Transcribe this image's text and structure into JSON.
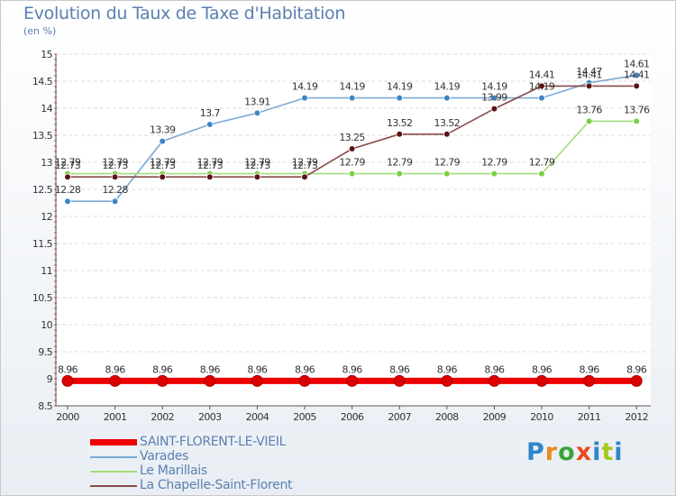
{
  "chart_data": {
    "type": "line",
    "title": "Evolution du Taux de Taxe d'Habitation",
    "subtitle": "(en %)",
    "categories": [
      "2000",
      "2001",
      "2002",
      "2003",
      "2004",
      "2005",
      "2006",
      "2007",
      "2008",
      "2009",
      "2010",
      "2011",
      "2012"
    ],
    "ylim": [
      8.5,
      15
    ],
    "yticks": [
      "8.5",
      "9",
      "9.5",
      "10",
      "10.5",
      "11",
      "11.5",
      "12",
      "12.5",
      "13",
      "13.5",
      "14",
      "14.5",
      "15"
    ],
    "legend_position": "bottom-left",
    "series": [
      {
        "name": "SAINT-FLORENT-LE-VIEIL",
        "color": "#ee0000",
        "marker": "#dd0000",
        "thick": true,
        "values": [
          8.96,
          8.96,
          8.96,
          8.96,
          8.96,
          8.96,
          8.96,
          8.96,
          8.96,
          8.96,
          8.96,
          8.96,
          8.96
        ],
        "labels": [
          "8.96",
          "8.96",
          "8.96",
          "8.96",
          "8.96",
          "8.96",
          "8.96",
          "8.96",
          "8.96",
          "8.96",
          "8.96",
          "8.96",
          "8.96"
        ]
      },
      {
        "name": "Varades",
        "color": "#7ba9d6",
        "marker": "#3d86c6",
        "thick": false,
        "values": [
          12.28,
          12.28,
          13.39,
          13.7,
          13.91,
          14.19,
          14.19,
          14.19,
          14.19,
          14.19,
          14.19,
          14.47,
          14.61
        ],
        "labels": [
          "12.28",
          "12.28",
          "13.39",
          "13.7",
          "13.91",
          "14.19",
          "14.19",
          "14.19",
          "14.19",
          "14.19",
          "14.19",
          "14.47",
          "14.61"
        ]
      },
      {
        "name": "Le Marillais",
        "color": "#a4dc7a",
        "marker": "#7ccf42",
        "thick": false,
        "values": [
          12.79,
          12.79,
          12.79,
          12.79,
          12.79,
          12.79,
          12.79,
          12.79,
          12.79,
          12.79,
          12.79,
          13.76,
          13.76
        ],
        "labels": [
          "12.79",
          "12.79",
          "12.79",
          "12.79",
          "12.79",
          "12.79",
          "12.79",
          "12.79",
          "12.79",
          "12.79",
          "12.79",
          "13.76",
          "13.76"
        ]
      },
      {
        "name": "La Chapelle-Saint-Florent",
        "color": "#8b4a4a",
        "marker": "#5a1414",
        "thick": false,
        "values": [
          12.73,
          12.73,
          12.73,
          12.73,
          12.73,
          12.73,
          13.25,
          13.52,
          13.52,
          13.99,
          14.41,
          14.41,
          14.41
        ],
        "labels": [
          "12.73",
          "12.73",
          "12.73",
          "12.73",
          "12.73",
          "12.73",
          "13.25",
          "13.52",
          "13.52",
          "13.99",
          "14.41",
          "14.41",
          "14.41"
        ]
      }
    ]
  },
  "logo_text": "Proxiti"
}
